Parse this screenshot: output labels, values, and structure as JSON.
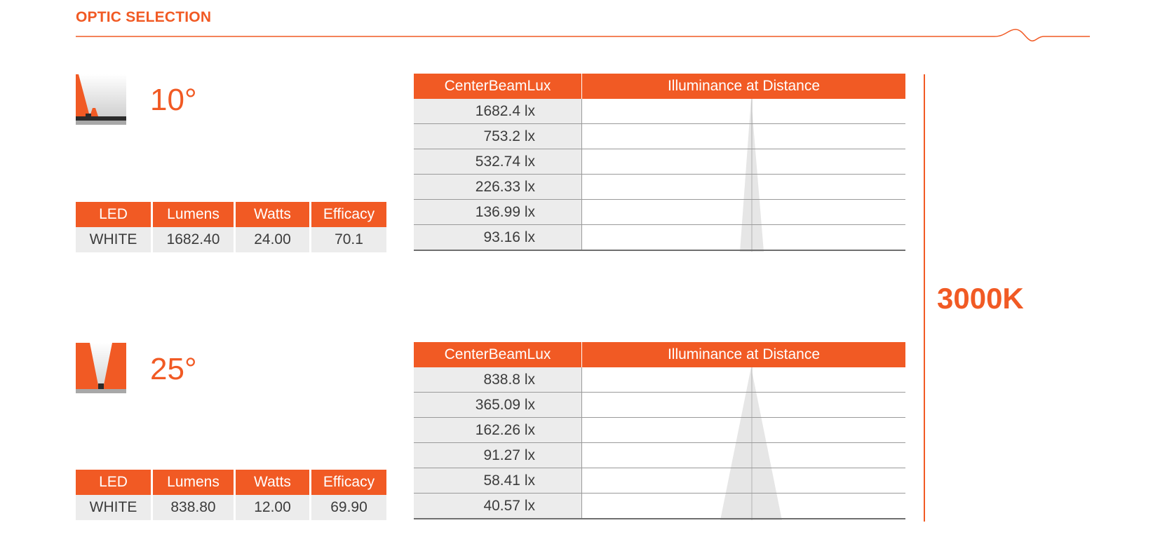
{
  "header": {
    "title": "OPTIC SELECTION"
  },
  "colors": {
    "accent": "#f15a24",
    "cell_bg": "#ececec",
    "text": "#3c3c3c",
    "beam": "#e6e6e6"
  },
  "cct": "3000K",
  "optics": [
    {
      "icon": "narrow-beam-optic-icon",
      "angle": "10°",
      "spec": {
        "headers": [
          "LED",
          "Lumens",
          "Watts",
          "Efficacy"
        ],
        "values": [
          "WHITE",
          "1682.40",
          "24.00",
          "70.1"
        ]
      },
      "lux": {
        "headers": [
          "CenterBeamLux",
          "Illuminance at Distance"
        ],
        "values": [
          "1682.4 lx",
          "753.2 lx",
          "532.74 lx",
          "226.33 lx",
          "136.99 lx",
          "93.16 lx"
        ]
      }
    },
    {
      "icon": "medium-beam-optic-icon",
      "angle": "25°",
      "spec": {
        "headers": [
          "LED",
          "Lumens",
          "Watts",
          "Efficacy"
        ],
        "values": [
          "WHITE",
          "838.80",
          "12.00",
          "69.90"
        ]
      },
      "lux": {
        "headers": [
          "CenterBeamLux",
          "Illuminance at Distance"
        ],
        "values": [
          "838.8 lx",
          "365.09 lx",
          "162.26 lx",
          "91.27 lx",
          "58.41 lx",
          "40.57 lx"
        ]
      }
    }
  ]
}
